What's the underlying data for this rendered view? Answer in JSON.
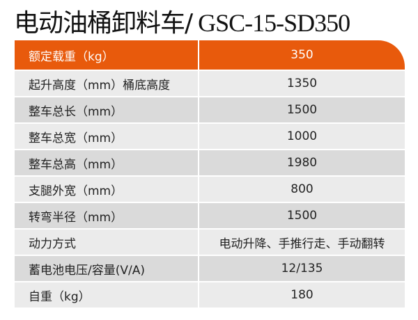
{
  "title": {
    "name": "电动油桶卸料车/",
    "model": " GSC-15-SD350"
  },
  "colors": {
    "header": "#e85a0c",
    "row_light": "#ebebeb",
    "row_dark": "#dadada"
  },
  "header": {
    "label": "额定载重（kg）",
    "value": "350"
  },
  "rows": [
    {
      "label": "起升高度（mm）桶底高度",
      "value": "1350"
    },
    {
      "label": "整车总长（mm）",
      "value": "1500"
    },
    {
      "label": "整车总宽（mm）",
      "value": "1000"
    },
    {
      "label": "整车总高（mm）",
      "value": "1980"
    },
    {
      "label": "支腿外宽（mm）",
      "value": "800"
    },
    {
      "label": "转弯半径（mm）",
      "value": "1500"
    },
    {
      "label": "动力方式",
      "value": "电动升降、手推行走、手动翻转"
    },
    {
      "label": "蓄电池电压/容量(V/A)",
      "value": "12/135"
    },
    {
      "label": "自重（kg）",
      "value": "180"
    }
  ]
}
